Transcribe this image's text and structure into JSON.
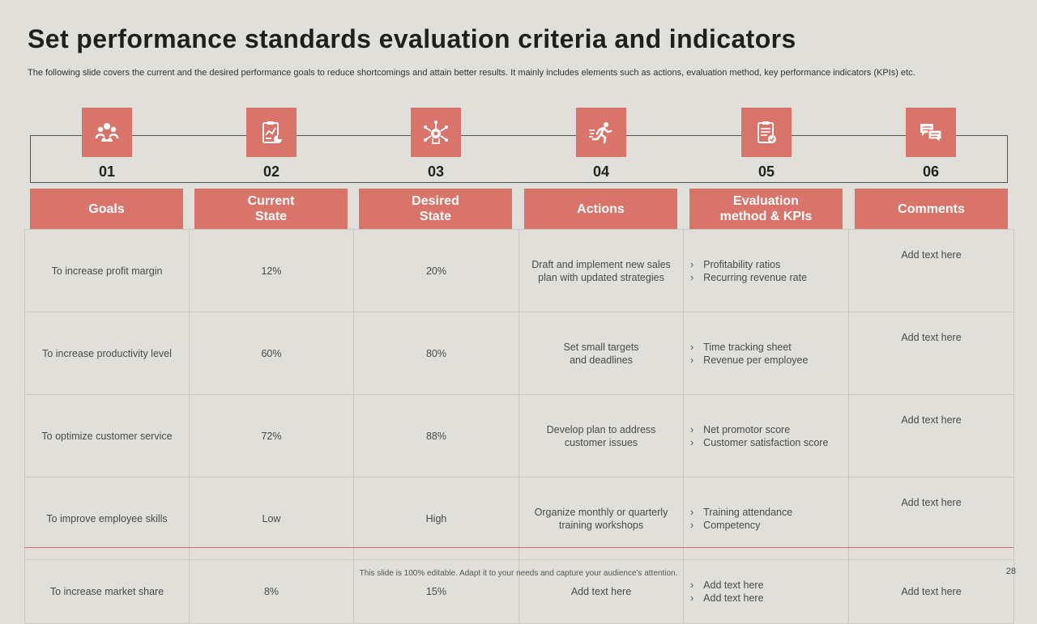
{
  "slide": {
    "title": "Set performance standards evaluation criteria and indicators",
    "subtitle": "The following slide covers the current and the desired performance goals to reduce shortcomings and attain better results. It mainly includes elements such as actions, evaluation method, key performance indicators (KPIs) etc.",
    "footer": "This slide is 100% editable. Adapt it to your needs and capture your audience's attention.",
    "page_number": "28",
    "accent_color": "#d9746a",
    "background_color": "#e0dfda"
  },
  "steps": [
    {
      "number": "01",
      "icon": "goals-people-icon"
    },
    {
      "number": "02",
      "icon": "clipboard-chart-icon"
    },
    {
      "number": "03",
      "icon": "target-network-icon"
    },
    {
      "number": "04",
      "icon": "running-person-icon"
    },
    {
      "number": "05",
      "icon": "checklist-icon"
    },
    {
      "number": "06",
      "icon": "chat-bubbles-icon"
    }
  ],
  "headers": [
    "Goals",
    "Current\nState",
    "Desired\nState",
    "Actions",
    "Evaluation\nmethod & KPIs",
    "Comments"
  ],
  "rows": [
    {
      "goal": "To increase profit margin",
      "current": "12%",
      "desired": "20%",
      "action": "Draft and implement new sales plan with updated strategies",
      "kpis": [
        "Profitability ratios",
        "Recurring revenue  rate"
      ],
      "comment": "Add text here"
    },
    {
      "goal": "To increase productivity level",
      "current": "60%",
      "desired": "80%",
      "action": "Set small targets and deadlines",
      "kpis": [
        "Time tracking sheet",
        "Revenue  per employee"
      ],
      "comment": "Add text here"
    },
    {
      "goal": "To optimize customer service",
      "current": "72%",
      "desired": "88%",
      "action": "Develop  plan to address customer issues",
      "kpis": [
        "Net promotor score",
        "Customer satisfaction score"
      ],
      "comment": "Add text here"
    },
    {
      "goal": "To improve  employee skills",
      "current": "Low",
      "desired": "High",
      "action": "Organize monthly or quarterly training workshops",
      "kpis": [
        "Training attendance",
        "Competency"
      ],
      "comment": "Add text here"
    },
    {
      "goal": "To increase market share",
      "current": "8%",
      "desired": "15%",
      "action": "Add text here",
      "kpis": [
        "Add text here",
        "Add text here"
      ],
      "comment": "Add text here"
    }
  ]
}
